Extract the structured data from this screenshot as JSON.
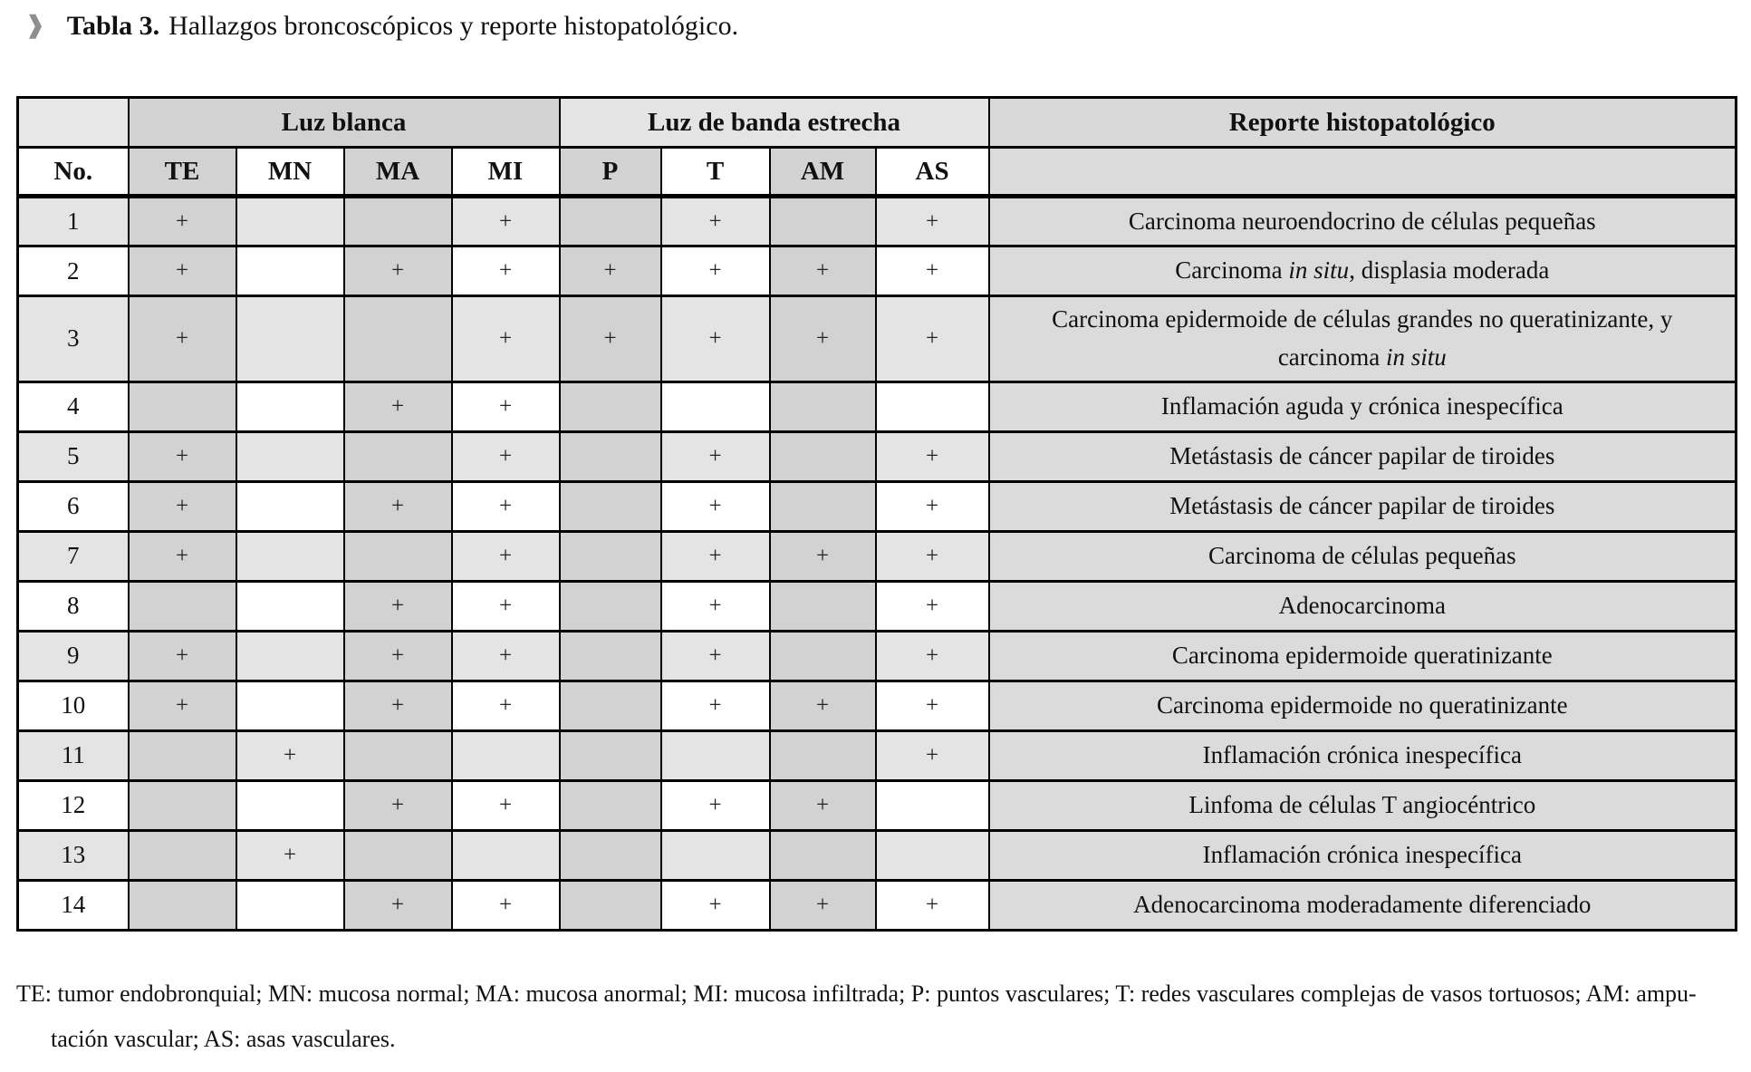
{
  "title": {
    "icon": "❱",
    "label": "Tabla 3.",
    "text": "Hallazgos broncoscópicos y reporte histopatológico."
  },
  "table": {
    "group_headers": {
      "corner": "",
      "luz_blanca": "Luz blanca",
      "banda_estrecha": "Luz de banda estrecha",
      "reporte": "Reporte histopatológico"
    },
    "no_header": "No.",
    "mark_columns": [
      "TE",
      "MN",
      "MA",
      "MI",
      "P",
      "T",
      "AM",
      "AS"
    ],
    "rows": [
      {
        "no": "1",
        "marks": [
          "+",
          "",
          "",
          "+",
          "",
          "+",
          "",
          "+"
        ],
        "report": [
          {
            "text": "Carcinoma neuroendocrino de células pequeñas"
          }
        ]
      },
      {
        "no": "2",
        "marks": [
          "+",
          "",
          "+",
          "+",
          "+",
          "+",
          "+",
          "+"
        ],
        "report": [
          {
            "text": "Carcinoma "
          },
          {
            "text": "in situ",
            "italic": true
          },
          {
            "text": ", displasia moderada"
          }
        ]
      },
      {
        "no": "3",
        "marks": [
          "+",
          "",
          "",
          "+",
          "+",
          "+",
          "+",
          "+"
        ],
        "report": [
          {
            "text": "Carcinoma epidermoide de células grandes no queratinizante, y carcinoma "
          },
          {
            "text": "in situ",
            "italic": true
          }
        ]
      },
      {
        "no": "4",
        "marks": [
          "",
          "",
          "+",
          "+",
          "",
          "",
          "",
          ""
        ],
        "report": [
          {
            "text": "Inflamación aguda y crónica inespecífica"
          }
        ]
      },
      {
        "no": "5",
        "marks": [
          "+",
          "",
          "",
          "+",
          "",
          "+",
          "",
          "+"
        ],
        "report": [
          {
            "text": "Metástasis de cáncer papilar de tiroides"
          }
        ]
      },
      {
        "no": "6",
        "marks": [
          "+",
          "",
          "+",
          "+",
          "",
          "+",
          "",
          "+"
        ],
        "report": [
          {
            "text": "Metástasis de cáncer papilar de tiroides"
          }
        ]
      },
      {
        "no": "7",
        "marks": [
          "+",
          "",
          "",
          "+",
          "",
          "+",
          "+",
          "+"
        ],
        "report": [
          {
            "text": "Carcinoma de células pequeñas"
          }
        ]
      },
      {
        "no": "8",
        "marks": [
          "",
          "",
          "+",
          "+",
          "",
          "+",
          "",
          "+"
        ],
        "report": [
          {
            "text": "Adenocarcinoma"
          }
        ]
      },
      {
        "no": "9",
        "marks": [
          "+",
          "",
          "+",
          "+",
          "",
          "+",
          "",
          "+"
        ],
        "report": [
          {
            "text": "Carcinoma epidermoide queratinizante"
          }
        ]
      },
      {
        "no": "10",
        "marks": [
          "+",
          "",
          "+",
          "+",
          "",
          "+",
          "+",
          "+"
        ],
        "report": [
          {
            "text": "Carcinoma epidermoide no queratinizante"
          }
        ]
      },
      {
        "no": "11",
        "marks": [
          "",
          "+",
          "",
          "",
          "",
          "",
          "",
          "+"
        ],
        "report": [
          {
            "text": "Inflamación crónica inespecífica"
          }
        ]
      },
      {
        "no": "12",
        "marks": [
          "",
          "",
          "+",
          "+",
          "",
          "+",
          "+",
          ""
        ],
        "report": [
          {
            "text": "Linfoma de células T angiocéntrico"
          }
        ]
      },
      {
        "no": "13",
        "marks": [
          "",
          "+",
          "",
          "",
          "",
          "",
          "",
          ""
        ],
        "report": [
          {
            "text": "Inflamación crónica inespecífica"
          }
        ]
      },
      {
        "no": "14",
        "marks": [
          "",
          "",
          "+",
          "+",
          "",
          "+",
          "+",
          "+"
        ],
        "report": [
          {
            "text": "Adenocarcinoma moderadamente diferenciado"
          }
        ]
      }
    ]
  },
  "footnote": {
    "lines": [
      "TE: tumor endobronquial; MN: mucosa normal; MA: mucosa anormal; MI: mucosa infiltrada; P: puntos vasculares; T: redes vasculares complejas de vasos tortuosos; AM: ampu-",
      "tación vascular; AS: asas vasculares."
    ]
  },
  "colors": {
    "striped_column": "#d2d2d2",
    "light_row": "#e4e4e4",
    "reporte_column": "#dbdbdb",
    "border": "#000000",
    "chevron": "#8f8f8f"
  }
}
